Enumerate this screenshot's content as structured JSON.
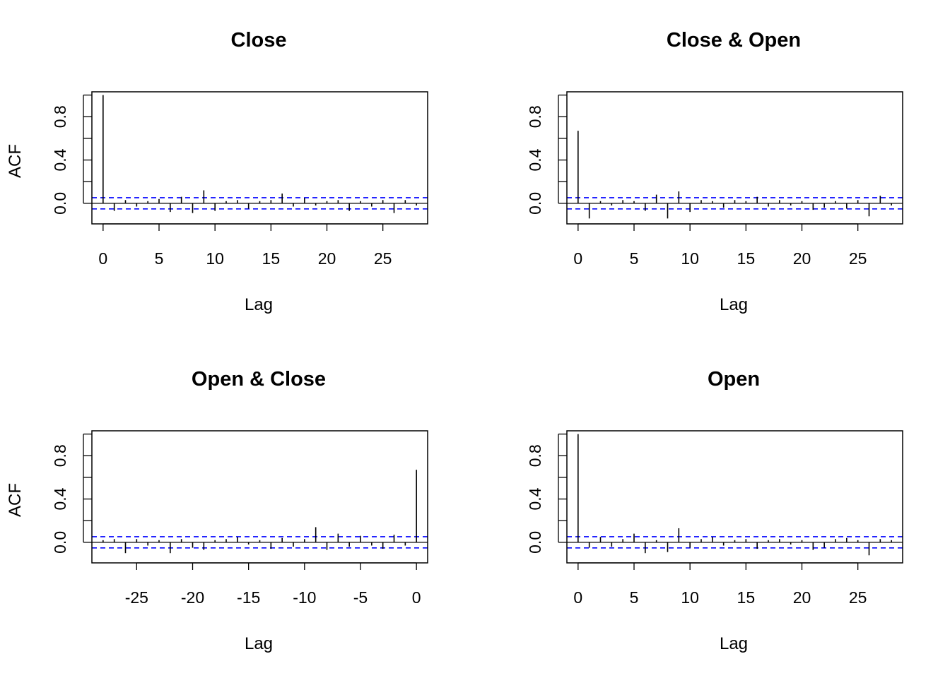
{
  "figure": {
    "colors": {
      "spike": "#000000",
      "ci_line": "#0000ff",
      "axis": "#000000"
    },
    "panels": [
      {
        "title": "Close",
        "xlabel": "Lag",
        "ylabel": "ACF",
        "chart_data": {
          "type": "bar",
          "xlim": [
            -1,
            29
          ],
          "ylim": [
            -0.19,
            1.03
          ],
          "x_ticks": [
            0,
            5,
            10,
            15,
            20,
            25
          ],
          "y_ticks": [
            0.0,
            0.4,
            0.8
          ],
          "y_minor_ticks": [
            -0.2,
            0.2,
            0.6,
            1.0
          ],
          "ci": 0.052,
          "lags": [
            0,
            1,
            2,
            3,
            4,
            5,
            6,
            7,
            8,
            9,
            10,
            11,
            12,
            13,
            14,
            15,
            16,
            17,
            18,
            19,
            20,
            21,
            22,
            23,
            24,
            25,
            26,
            27,
            28
          ],
          "acf": [
            1.0,
            -0.07,
            0.03,
            -0.03,
            0.02,
            0.04,
            -0.08,
            0.06,
            -0.09,
            0.12,
            -0.07,
            0.02,
            0.03,
            -0.05,
            0.02,
            0.03,
            0.09,
            -0.03,
            0.05,
            -0.02,
            0.02,
            0.03,
            -0.07,
            0.02,
            -0.03,
            0.03,
            -0.09,
            0.03,
            -0.02
          ]
        }
      },
      {
        "title": "Close & Open",
        "xlabel": "Lag",
        "ylabel": "",
        "chart_data": {
          "type": "bar",
          "xlim": [
            -1,
            29
          ],
          "ylim": [
            -0.19,
            1.03
          ],
          "x_ticks": [
            0,
            5,
            10,
            15,
            20,
            25
          ],
          "y_ticks": [
            0.0,
            0.4,
            0.8
          ],
          "y_minor_ticks": [
            -0.2,
            0.2,
            0.6,
            1.0
          ],
          "ci": 0.052,
          "lags": [
            0,
            1,
            2,
            3,
            4,
            5,
            6,
            7,
            8,
            9,
            10,
            11,
            12,
            13,
            14,
            15,
            16,
            17,
            18,
            19,
            20,
            21,
            22,
            23,
            24,
            25,
            26,
            27,
            28
          ],
          "acf": [
            0.67,
            -0.14,
            0.02,
            -0.02,
            0.03,
            0.02,
            -0.07,
            0.08,
            -0.14,
            0.11,
            -0.08,
            0.03,
            0.02,
            -0.04,
            0.03,
            0.02,
            0.06,
            -0.03,
            0.03,
            -0.02,
            0.02,
            -0.06,
            -0.04,
            0.02,
            -0.05,
            0.03,
            -0.12,
            0.07,
            -0.02
          ]
        }
      },
      {
        "title": "Open & Close",
        "xlabel": "Lag",
        "ylabel": "ACF",
        "chart_data": {
          "type": "bar",
          "xlim": [
            -29,
            1
          ],
          "ylim": [
            -0.19,
            1.03
          ],
          "x_ticks": [
            -25,
            -20,
            -15,
            -10,
            -5,
            0
          ],
          "y_ticks": [
            0.0,
            0.4,
            0.8
          ],
          "y_minor_ticks": [
            -0.2,
            0.2,
            0.6,
            1.0
          ],
          "ci": 0.052,
          "lags": [
            -28,
            -27,
            -26,
            -25,
            -24,
            -23,
            -22,
            -21,
            -20,
            -19,
            -18,
            -17,
            -16,
            -15,
            -14,
            -13,
            -12,
            -11,
            -10,
            -9,
            -8,
            -7,
            -6,
            -5,
            -4,
            -3,
            -2,
            -1,
            0
          ],
          "acf": [
            0.02,
            0.03,
            -0.1,
            0.03,
            -0.03,
            0.02,
            -0.1,
            0.03,
            -0.05,
            -0.07,
            0.02,
            0.03,
            0.05,
            -0.02,
            0.02,
            -0.06,
            0.04,
            -0.04,
            0.03,
            0.14,
            -0.07,
            0.08,
            -0.04,
            0.06,
            -0.03,
            -0.06,
            0.07,
            -0.03,
            0.67
          ]
        }
      },
      {
        "title": "Open",
        "xlabel": "Lag",
        "ylabel": "",
        "chart_data": {
          "type": "bar",
          "xlim": [
            -1,
            29
          ],
          "ylim": [
            -0.19,
            1.03
          ],
          "x_ticks": [
            0,
            5,
            10,
            15,
            20,
            25
          ],
          "y_ticks": [
            0.0,
            0.4,
            0.8
          ],
          "y_minor_ticks": [
            -0.2,
            0.2,
            0.6,
            1.0
          ],
          "ci": 0.052,
          "lags": [
            0,
            1,
            2,
            3,
            4,
            5,
            6,
            7,
            8,
            9,
            10,
            11,
            12,
            13,
            14,
            15,
            16,
            17,
            18,
            19,
            20,
            21,
            22,
            23,
            24,
            25,
            26,
            27,
            28
          ],
          "acf": [
            1.0,
            -0.05,
            0.05,
            -0.04,
            0.03,
            0.08,
            -0.1,
            0.02,
            -0.09,
            0.13,
            -0.05,
            0.03,
            0.05,
            -0.03,
            0.02,
            0.03,
            -0.06,
            0.02,
            0.03,
            -0.02,
            0.02,
            -0.07,
            -0.05,
            0.03,
            0.04,
            0.02,
            -0.12,
            0.03,
            0.02
          ]
        }
      }
    ]
  }
}
